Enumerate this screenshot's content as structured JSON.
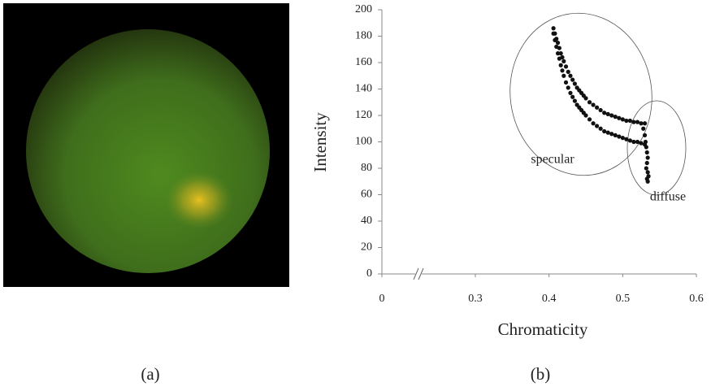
{
  "figure": {
    "captions": [
      "(a)",
      "(b)"
    ]
  },
  "chart_data": {
    "type": "scatter",
    "xlabel": "Chromaticity",
    "ylabel": "Intensity",
    "x": [
      0.406,
      0.408,
      0.41,
      0.412,
      0.414,
      0.416,
      0.418,
      0.42,
      0.423,
      0.426,
      0.429,
      0.432,
      0.435,
      0.438,
      0.441,
      0.444,
      0.447,
      0.45,
      0.455,
      0.46,
      0.465,
      0.47,
      0.475,
      0.48,
      0.485,
      0.49,
      0.495,
      0.5,
      0.505,
      0.51,
      0.515,
      0.52,
      0.525,
      0.53,
      0.406,
      0.408,
      0.41,
      0.412,
      0.414,
      0.416,
      0.418,
      0.42,
      0.423,
      0.426,
      0.429,
      0.432,
      0.435,
      0.438,
      0.441,
      0.444,
      0.447,
      0.45,
      0.455,
      0.46,
      0.465,
      0.47,
      0.475,
      0.48,
      0.485,
      0.49,
      0.495,
      0.5,
      0.505,
      0.51,
      0.515,
      0.52,
      0.525,
      0.53,
      0.528,
      0.53,
      0.531,
      0.532,
      0.533,
      0.534,
      0.533,
      0.532,
      0.534,
      0.535,
      0.533,
      0.534
    ],
    "values": [
      186,
      182,
      178,
      175,
      171,
      167,
      164,
      161,
      157,
      153,
      150,
      147,
      144,
      141,
      139,
      137,
      135,
      133,
      130,
      128,
      126,
      124,
      122,
      121,
      120,
      119,
      118,
      117,
      116,
      116,
      115,
      115,
      114,
      114,
      182,
      177,
      172,
      167,
      163,
      158,
      154,
      150,
      145,
      141,
      137,
      134,
      131,
      128,
      126,
      124,
      122,
      120,
      117,
      114,
      112,
      110,
      108,
      107,
      106,
      105,
      104,
      103,
      102,
      101,
      100,
      100,
      99,
      98,
      110,
      105,
      100,
      96,
      92,
      88,
      84,
      80,
      77,
      74,
      72,
      70
    ],
    "color": "#111111",
    "xlim": [
      0,
      0.6
    ],
    "xticks": [
      0,
      0.3,
      0.4,
      0.5,
      0.6
    ],
    "x_axis_break": true,
    "ylim": [
      0,
      200
    ],
    "yticks": [
      0,
      20,
      40,
      60,
      80,
      100,
      120,
      140,
      160,
      180,
      200
    ],
    "annotations": [
      "specular",
      "diffuse"
    ]
  }
}
